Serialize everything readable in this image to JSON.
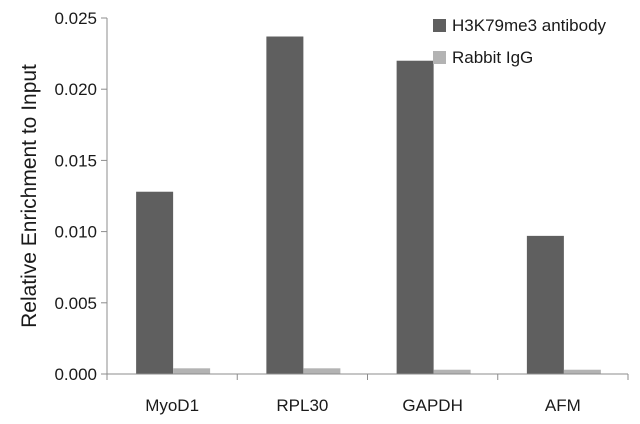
{
  "chart_data": {
    "type": "bar",
    "title": "",
    "xlabel": "",
    "ylabel": "Relative Enrichment to Input",
    "categories": [
      "MyoD1",
      "RPL30",
      "GAPDH",
      "AFM"
    ],
    "series": [
      {
        "name": "H3K79me3 antibody",
        "color": "#5f5f5f",
        "values": [
          0.0128,
          0.0237,
          0.022,
          0.0097
        ]
      },
      {
        "name": "Rabbit IgG",
        "color": "#b3b3b3",
        "values": [
          0.0004,
          0.0004,
          0.0003,
          0.0003
        ]
      }
    ],
    "ylim": [
      0,
      0.025
    ],
    "yticks": [
      "0.000",
      "0.005",
      "0.010",
      "0.015",
      "0.020",
      "0.025"
    ],
    "grid": false,
    "legend": "top-right"
  }
}
